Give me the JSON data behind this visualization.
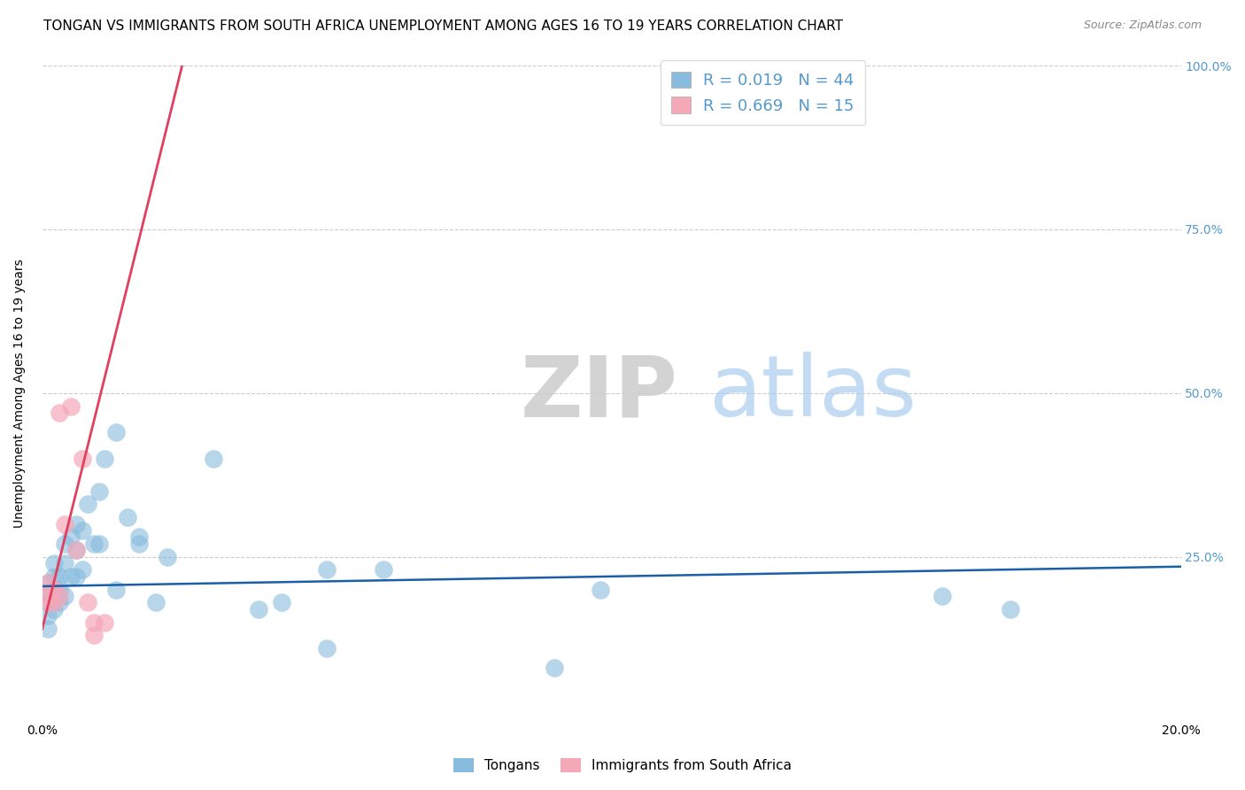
{
  "title": "TONGAN VS IMMIGRANTS FROM SOUTH AFRICA UNEMPLOYMENT AMONG AGES 16 TO 19 YEARS CORRELATION CHART",
  "source": "Source: ZipAtlas.com",
  "ylabel": "Unemployment Among Ages 16 to 19 years",
  "xlim": [
    0.0,
    0.2
  ],
  "ylim": [
    0.0,
    1.0
  ],
  "xticks": [
    0.0,
    0.04,
    0.08,
    0.12,
    0.16,
    0.2
  ],
  "xticklabels": [
    "0.0%",
    "",
    "",
    "",
    "",
    "20.0%"
  ],
  "yticks": [
    0.0,
    0.25,
    0.5,
    0.75,
    1.0
  ],
  "yticklabels": [
    "",
    "25.0%",
    "50.0%",
    "75.0%",
    "100.0%"
  ],
  "watermark_zip": "ZIP",
  "watermark_atlas": "atlas",
  "tongans_x": [
    0.001,
    0.001,
    0.001,
    0.001,
    0.001,
    0.002,
    0.002,
    0.002,
    0.002,
    0.003,
    0.003,
    0.003,
    0.004,
    0.004,
    0.004,
    0.005,
    0.005,
    0.006,
    0.006,
    0.006,
    0.007,
    0.007,
    0.008,
    0.009,
    0.01,
    0.01,
    0.011,
    0.013,
    0.015,
    0.017,
    0.022,
    0.03,
    0.05,
    0.06,
    0.09,
    0.098,
    0.158,
    0.17,
    0.013,
    0.017,
    0.02,
    0.038,
    0.042,
    0.05
  ],
  "tongans_y": [
    0.19,
    0.16,
    0.21,
    0.18,
    0.14,
    0.22,
    0.24,
    0.2,
    0.17,
    0.2,
    0.22,
    0.18,
    0.27,
    0.24,
    0.19,
    0.28,
    0.22,
    0.3,
    0.26,
    0.22,
    0.29,
    0.23,
    0.33,
    0.27,
    0.35,
    0.27,
    0.4,
    0.44,
    0.31,
    0.27,
    0.25,
    0.4,
    0.23,
    0.23,
    0.08,
    0.2,
    0.19,
    0.17,
    0.2,
    0.28,
    0.18,
    0.17,
    0.18,
    0.11
  ],
  "sa_x": [
    0.001,
    0.001,
    0.001,
    0.002,
    0.002,
    0.003,
    0.003,
    0.004,
    0.005,
    0.006,
    0.007,
    0.008,
    0.009,
    0.009,
    0.011
  ],
  "sa_y": [
    0.19,
    0.21,
    0.18,
    0.2,
    0.18,
    0.47,
    0.19,
    0.3,
    0.48,
    0.26,
    0.4,
    0.18,
    0.15,
    0.13,
    0.15
  ],
  "tongans_color": "#88bbdd",
  "sa_color": "#f4a8b8",
  "tongans_regression_color": "#1a5fa8",
  "sa_regression_color": "#e04060",
  "sa_trendline_slope": 35.0,
  "sa_trendline_intercept": 0.14,
  "tongans_trendline_slope": 0.15,
  "tongans_trendline_intercept": 0.205,
  "grid_color": "#cccccc",
  "background_color": "#ffffff",
  "right_tick_color": "#5599cc",
  "title_fontsize": 11,
  "axis_label_fontsize": 10,
  "tick_fontsize": 10,
  "legend_fontsize": 13
}
